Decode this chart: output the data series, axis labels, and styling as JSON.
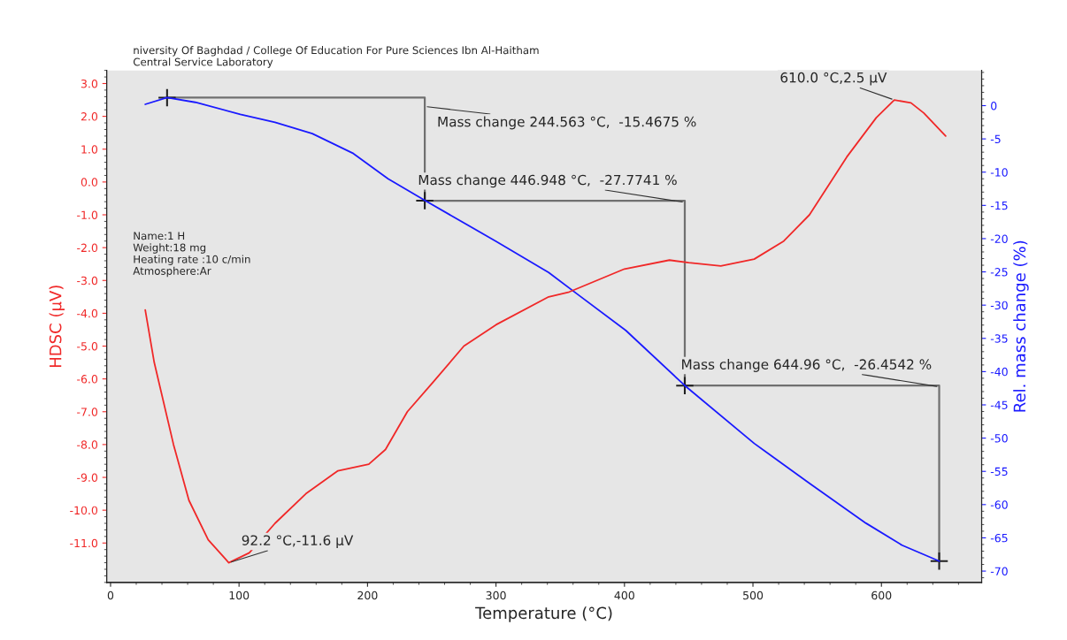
{
  "chart_data": {
    "type": "line",
    "xlabel": "Temperature (°C)",
    "ylabel": "HDSC (µV)",
    "y2label": "Rel. mass change (%)",
    "xlim": [
      -3,
      678
    ],
    "xticks": [
      0,
      100,
      200,
      300,
      400,
      500,
      600
    ],
    "ylim": [
      -12.2,
      3.4
    ],
    "yticks": [
      {
        "value": 3,
        "label": "3.0"
      },
      {
        "value": 2,
        "label": "2.0"
      },
      {
        "value": 1,
        "label": "1.0"
      },
      {
        "value": 0,
        "label": "0.0"
      },
      {
        "value": -1,
        "label": "-1.0"
      },
      {
        "value": -2,
        "label": "-2.0"
      },
      {
        "value": -3,
        "label": "-3.0"
      },
      {
        "value": -4,
        "label": "-4.0"
      },
      {
        "value": -5,
        "label": "-5.0"
      },
      {
        "value": -6,
        "label": "-6.0"
      },
      {
        "value": -7,
        "label": "-7.0"
      },
      {
        "value": -8,
        "label": "-8.0"
      },
      {
        "value": -9,
        "label": "-9.0"
      },
      {
        "value": -10,
        "label": "-10.0"
      },
      {
        "value": -11,
        "label": "-11.0"
      }
    ],
    "y2lim": [
      -71.7,
      5.3
    ],
    "y2ticks": [
      0,
      -5,
      -10,
      -15,
      -20,
      -25,
      -30,
      -35,
      -40,
      -45,
      -50,
      -55,
      -60,
      -65,
      -70
    ],
    "grid": false,
    "legend": false,
    "series": [
      {
        "axis": "y",
        "color": "#f02828",
        "x": [
          27,
          34,
          49,
          61,
          76,
          92,
          108,
          128,
          152,
          177,
          201,
          214,
          231,
          251,
          275,
          300,
          341,
          357,
          400,
          435,
          450,
          475,
          501,
          524,
          544,
          573,
          596,
          610,
          623,
          633,
          650
        ],
        "values": [
          -3.9,
          -5.5,
          -8.0,
          -9.7,
          -10.9,
          -11.6,
          -11.3,
          -10.4,
          -9.5,
          -8.8,
          -8.6,
          -8.15,
          -7.0,
          -6.1,
          -5.0,
          -4.35,
          -3.5,
          -3.35,
          -2.65,
          -2.38,
          -2.46,
          -2.56,
          -2.35,
          -1.8,
          -1.0,
          0.76,
          1.96,
          2.5,
          2.41,
          2.1,
          1.4
        ]
      },
      {
        "axis": "y2",
        "color": "#1a1aff",
        "x": [
          27,
          44,
          66,
          101,
          128,
          157,
          189,
          216,
          245,
          300,
          341,
          363,
          401,
          447,
          501,
          544,
          588,
          616,
          645
        ],
        "values": [
          0.2,
          1.2,
          0.5,
          -1.3,
          -2.5,
          -4.2,
          -7.2,
          -11.0,
          -14.3,
          -20.4,
          -25.1,
          -28.3,
          -33.8,
          -42.1,
          -50.8,
          -56.8,
          -62.8,
          -66.1,
          -68.5
        ]
      },
      {
        "type": "step",
        "axis": "y2",
        "color": "#707070",
        "marker": "cross",
        "x": [
          44,
          244.563,
          446.948,
          644.96
        ],
        "values": [
          1.2,
          -14.3,
          -42.1,
          -68.5
        ]
      }
    ],
    "annotations": [
      "niversity Of Baghdad / College Of Education For Pure Sciences Ibn Al-Haitham\nCentral Service Laboratory",
      "Name:1 H\nWeight:18 mg\nHeating rate :10 c/min\nAtmosphere:Ar",
      {
        "text": "Mass change 244.563 °C,  -15.4675 %",
        "x": 244.563,
        "y": 2.3
      },
      {
        "text": "Mass change 446.948 °C,  -27.7741 %",
        "x": 446.948,
        "y": -0.62
      },
      {
        "text": "Mass change 644.96 °C,  -26.4542 %",
        "x": 644.96,
        "y": -6.24
      },
      {
        "text": "92.2 °C,-11.6 µV",
        "x": 92.2,
        "y": -11.6
      },
      {
        "text": "610.0 °C,2.5 µV",
        "x": 610.0,
        "y": 2.5
      }
    ]
  }
}
